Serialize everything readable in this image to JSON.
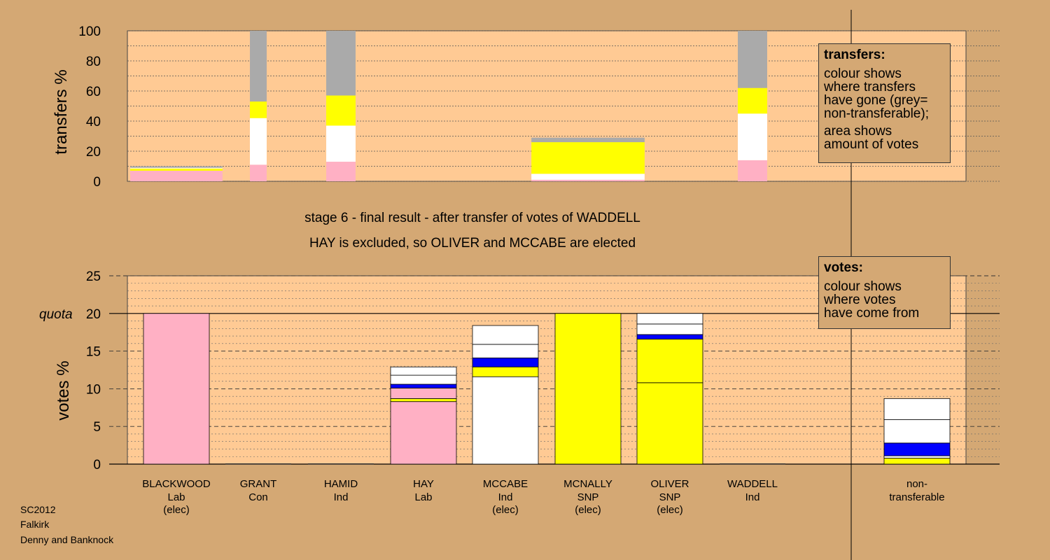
{
  "colors": {
    "background": "#d4a874",
    "plot_background": "#ffca94",
    "Lab": "#ffb0c4",
    "SNP": "#ffff00",
    "Ind": "#ffffff",
    "Con": "#0000ff",
    "non_transferable": "#aaaaaa"
  },
  "title": {
    "line1": "stage 6 - final result - after transfer of votes of WADDELL",
    "line2": "HAY is excluded, so OLIVER and MCCABE are elected"
  },
  "transfers_legend": {
    "heading": "transfers:",
    "text1": "colour shows\nwhere transfers\nhave gone (grey=\nnon-transferable);",
    "text2": "area shows\namount of votes"
  },
  "votes_legend": {
    "heading": "votes:",
    "text1": "colour shows\nwhere votes\nhave come from"
  },
  "footer": {
    "line1": "SC2012",
    "line2": "Falkirk",
    "line3": "Denny and Banknock"
  },
  "chart_data": [
    {
      "type": "bar",
      "chart": "transfers",
      "ylabel": "transfers %",
      "ylim": [
        0,
        100
      ],
      "yticks": [
        "0",
        "20",
        "40",
        "60",
        "80",
        "100"
      ],
      "columns": [
        {
          "candidate": "BLACKWOOD",
          "width_share": 0.11,
          "segments": [
            {
              "color": "Lab",
              "value": 7
            },
            {
              "color": "SNP",
              "value": 1.5
            },
            {
              "color": "Ind",
              "value": 0.5
            },
            {
              "color": "non_transferable",
              "value": 1
            }
          ]
        },
        {
          "candidate": "GRANT",
          "width_share": 0.02,
          "segments": [
            {
              "color": "Lab",
              "value": 11
            },
            {
              "color": "Ind",
              "value": 31
            },
            {
              "color": "SNP",
              "value": 11
            },
            {
              "color": "non_transferable",
              "value": 47
            }
          ]
        },
        {
          "candidate": "HAMID",
          "width_share": 0.035,
          "segments": [
            {
              "color": "Lab",
              "value": 13
            },
            {
              "color": "Ind",
              "value": 24
            },
            {
              "color": "SNP",
              "value": 20
            },
            {
              "color": "non_transferable",
              "value": 43
            }
          ]
        },
        {
          "candidate": "MCNALLY",
          "width_share": 0.135,
          "segments": [
            {
              "color": "Lab",
              "value": 1
            },
            {
              "color": "Ind",
              "value": 4
            },
            {
              "color": "SNP",
              "value": 21
            },
            {
              "color": "non_transferable",
              "value": 3
            }
          ]
        },
        {
          "candidate": "WADDELL",
          "width_share": 0.035,
          "segments": [
            {
              "color": "Lab",
              "value": 14
            },
            {
              "color": "Ind",
              "value": 31
            },
            {
              "color": "SNP",
              "value": 17
            },
            {
              "color": "non_transferable",
              "value": 38
            }
          ]
        }
      ]
    },
    {
      "type": "bar",
      "chart": "votes",
      "ylabel": "votes %",
      "ylim": [
        0,
        25
      ],
      "yticks": [
        "0",
        "5",
        "10",
        "15",
        "20",
        "25"
      ],
      "quota": 20,
      "quota_label": "quota",
      "categories": [
        {
          "name": "BLACKWOOD",
          "party": "Lab",
          "elec": "(elec)"
        },
        {
          "name": "GRANT",
          "party": "Con",
          "elec": ""
        },
        {
          "name": "HAMID",
          "party": "Ind",
          "elec": ""
        },
        {
          "name": "HAY",
          "party": "Lab",
          "elec": ""
        },
        {
          "name": "MCCABE",
          "party": "Ind",
          "elec": "(elec)"
        },
        {
          "name": "MCNALLY",
          "party": "SNP",
          "elec": "(elec)"
        },
        {
          "name": "OLIVER",
          "party": "SNP",
          "elec": "(elec)"
        },
        {
          "name": "WADDELL",
          "party": "Ind",
          "elec": ""
        },
        {
          "name": "non-",
          "party": "transferable",
          "elec": ""
        }
      ],
      "bars": [
        [
          {
            "color": "Lab",
            "value": 20
          }
        ],
        [],
        [],
        [
          {
            "color": "Lab",
            "value": 8.3
          },
          {
            "color": "SNP",
            "value": 0.4
          },
          {
            "color": "Lab",
            "value": 1.4
          },
          {
            "color": "Con",
            "value": 0.5
          },
          {
            "color": "Ind",
            "value": 1.2
          },
          {
            "color": "Ind",
            "value": 1.1
          }
        ],
        [
          {
            "color": "Ind",
            "value": 11.6
          },
          {
            "color": "SNP",
            "value": 1.3
          },
          {
            "color": "Con",
            "value": 1.2
          },
          {
            "color": "Ind",
            "value": 1.8
          },
          {
            "color": "Ind",
            "value": 2.5
          }
        ],
        [
          {
            "color": "SNP",
            "value": 20
          }
        ],
        [
          {
            "color": "SNP",
            "value": 10.8
          },
          {
            "color": "SNP",
            "value": 5.8
          },
          {
            "color": "Con",
            "value": 0.6
          },
          {
            "color": "Ind",
            "value": 1.4
          },
          {
            "color": "Ind",
            "value": 1.4
          }
        ],
        [],
        [
          {
            "color": "SNP",
            "value": 0.8
          },
          {
            "color": "Ind",
            "value": 0.3
          },
          {
            "color": "Con",
            "value": 1.7
          },
          {
            "color": "Ind",
            "value": 3.1
          },
          {
            "color": "Ind",
            "value": 2.8
          }
        ]
      ]
    }
  ]
}
